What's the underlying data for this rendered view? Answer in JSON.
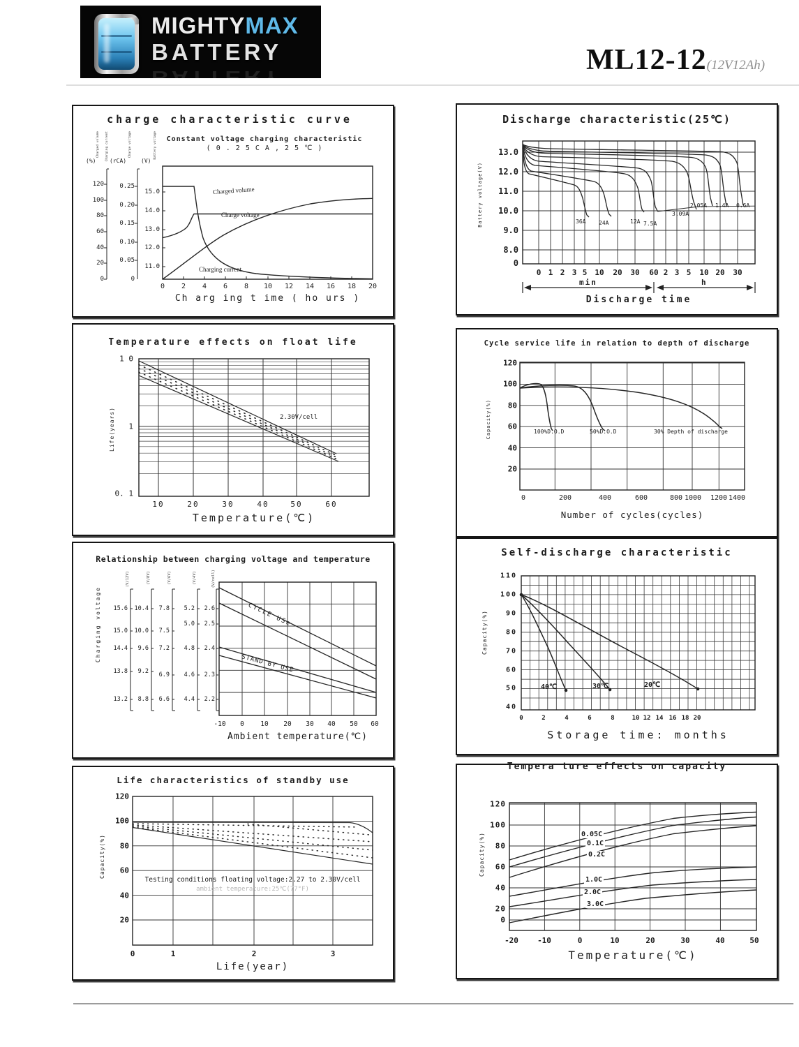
{
  "header": {
    "logo_word1": "MIGHTY",
    "logo_word2": "MAX",
    "logo_word3": "BATTERY",
    "model": "ML12-12",
    "model_suffix": "(12V12Ah)"
  },
  "charts": {
    "charge": {
      "title": "charge characteristic curve",
      "subtitle1": "Constant voltage charging characteristic",
      "subtitle2": "( 0 . 2 5 C A , 2 5 ℃ )",
      "axis_units": [
        "(%)",
        "(rCA)",
        "(V)"
      ],
      "pct_ticks": [
        "120",
        "100",
        "80",
        "60",
        "40",
        "20",
        "0"
      ],
      "rca_ticks": [
        "0.25",
        "0.20",
        "0.15",
        "0.10",
        "0.05",
        "0"
      ],
      "v_ticks": [
        "15.0",
        "14.0",
        "13.0",
        "12.0",
        "11.0"
      ],
      "x_ticks": [
        "0",
        "2",
        "4",
        "6",
        "8",
        "10",
        "12",
        "14",
        "16",
        "18",
        "20"
      ],
      "xlabel": "Ch arg ing t ime ( ho urs )",
      "label_volume": "Charged volume",
      "label_voltage": "Charge voltage",
      "label_current": "Charging current",
      "micro_labels": [
        "Charged volume",
        "Charging current",
        "Charge voltage",
        "Battery voltage"
      ]
    },
    "discharge": {
      "title": "Discharge characteristic(25℃)",
      "ylabel": "Battery voltage(V)",
      "y_ticks": [
        "13.0",
        "12.0",
        "11.0",
        "10.0",
        "9.0",
        "8.0",
        "0"
      ],
      "x_ticks_min": [
        "0",
        "1",
        "2",
        "3",
        "5",
        "10",
        "20",
        "30",
        "60"
      ],
      "x_ticks_h": [
        "2",
        "3",
        "5",
        "10",
        "20",
        "30"
      ],
      "section_min": "min",
      "section_h": "h",
      "xlabel": "Discharge time",
      "curve_labels": [
        "36A",
        "24A",
        "12A",
        "7.5A",
        "3.09A",
        "2.05A",
        "1.4A",
        "0.6A"
      ]
    },
    "float_life": {
      "title": "Temperature effects on float life",
      "ylabel": "Life(years)",
      "y_ticks": [
        "1 0",
        "1",
        "0. 1"
      ],
      "x_ticks": [
        "10",
        "20",
        "30",
        "40",
        "50",
        "60"
      ],
      "xlabel": "Temperature(℃)",
      "annotation": "2.30V/cell"
    },
    "cycle_life": {
      "title": "Cycle service life in relation to depth of discharge",
      "ylabel": "Capacity(%)",
      "y_ticks": [
        "120",
        "100",
        "80",
        "60",
        "40",
        "20"
      ],
      "x_ticks": [
        "0",
        "200",
        "400",
        "600",
        "800",
        "1000",
        "1200",
        "1400"
      ],
      "xlabel": "Number of cycles(cycles)",
      "curve_labels": [
        "100%D.O.D",
        "50%D.O.D",
        "30% Depth of discharge"
      ]
    },
    "charge_voltage_temp": {
      "title": "Relationship between charging voltage and temperature",
      "ylabel": "Charging voltage",
      "scale_units": [
        "(V/12V)",
        "(V/8V)",
        "(V/6V)",
        "(V/4V)",
        "(V/cell)"
      ],
      "scale_12v": [
        "15.6",
        "15.0",
        "14.4",
        "13.8",
        "13.2"
      ],
      "scale_8v": [
        "10.4",
        "10.0",
        "9.6",
        "9.2",
        "8.8"
      ],
      "scale_6v": [
        "7.8",
        "7.5",
        "7.2",
        "6.9",
        "6.6"
      ],
      "scale_4v": [
        "5.2",
        "5.0",
        "4.8",
        "4.6",
        "4.4"
      ],
      "scale_2v": [
        "2.6",
        "2.5",
        "2.4",
        "2.3",
        "2.2"
      ],
      "x_ticks": [
        "-10",
        "0",
        "10",
        "20",
        "30",
        "40",
        "50",
        "60"
      ],
      "xlabel": "Ambient temperature(℃)",
      "band_label_cycle": "CYCLE USe",
      "band_label_standby": "STAND BY USE"
    },
    "self_discharge": {
      "title": "Self-discharge characteristic",
      "ylabel": "Capacity(%)",
      "y_ticks": [
        "110",
        "100",
        "90",
        "80",
        "70",
        "60",
        "50",
        "40"
      ],
      "x_ticks": [
        "0",
        "2",
        "4",
        "6",
        "8",
        "10",
        "12",
        "14",
        "16",
        "18",
        "20"
      ],
      "xlabel": "Storage time: months",
      "curve_labels": [
        "40℃",
        "30℃",
        "20℃"
      ]
    },
    "standby_life": {
      "title": "Life characteristics of standby use",
      "ylabel": "Capacity(%)",
      "y_ticks": [
        "120",
        "100",
        "80",
        "60",
        "40",
        "20"
      ],
      "x_ticks": [
        "0",
        "1",
        "2",
        "3"
      ],
      "xlabel": "Life(year)",
      "note1": "Testing conditions floating voltage:2.27 to 2.30V/cell",
      "note2": "ambient temperature:25℃(77°F)"
    },
    "temp_capacity": {
      "title": "Tempera ture effects on capacity",
      "ylabel": "Capacity(%)",
      "y_ticks": [
        "120",
        "100",
        "80",
        "60",
        "40",
        "20",
        "0"
      ],
      "x_ticks": [
        "-20",
        "-10",
        "0",
        "10",
        "20",
        "30",
        "40",
        "50"
      ],
      "xlabel": "Temperature(℃)",
      "curve_labels": [
        "0.05C",
        "0.1C",
        "0.2C",
        "1.0C",
        "2.0C",
        "3.0C"
      ]
    }
  },
  "chart_data": [
    {
      "id": "charge_characteristic",
      "type": "line",
      "title": "charge characteristic curve",
      "subtitle": "Constant voltage charging characteristic (0.25CA, 25℃)",
      "xlabel": "Charging time (hours)",
      "x_range": [
        0,
        20
      ],
      "axes": [
        {
          "label": "Charged volume",
          "unit": "%",
          "range": [
            0,
            120
          ]
        },
        {
          "label": "Charging current",
          "unit": "rCA",
          "range": [
            0,
            0.25
          ]
        },
        {
          "label": "Charge voltage",
          "unit": "V",
          "range": [
            11,
            15
          ]
        }
      ],
      "series": [
        {
          "name": "Charged volume",
          "unit": "%",
          "x": [
            0,
            2,
            4,
            6,
            8,
            10,
            12,
            14,
            16,
            18,
            20
          ],
          "y": [
            0,
            22,
            46,
            63,
            75,
            84,
            90,
            95,
            98,
            100,
            102
          ]
        },
        {
          "name": "Charge voltage",
          "unit": "V",
          "x": [
            0,
            1,
            2,
            2.5,
            3,
            4,
            20
          ],
          "y": [
            12.55,
            12.7,
            13.0,
            13.3,
            13.85,
            13.85,
            13.85
          ]
        },
        {
          "name": "Charging current",
          "unit": "CA",
          "x": [
            0,
            3,
            4,
            5,
            6,
            8,
            10,
            14,
            20
          ],
          "y": [
            0.25,
            0.25,
            0.13,
            0.085,
            0.062,
            0.04,
            0.028,
            0.015,
            0.009
          ]
        }
      ]
    },
    {
      "id": "discharge_characteristic",
      "type": "line",
      "title": "Discharge characteristic(25℃)",
      "xlabel": "Discharge time (min then h)",
      "ylabel": "Battery voltage(V)",
      "ylim": [
        8,
        13.5
      ],
      "x_ticks": [
        "0min",
        "1",
        "2",
        "3",
        "5",
        "10",
        "20",
        "30",
        "60min",
        "2h",
        "3h",
        "5h",
        "10h",
        "20h",
        "30h"
      ],
      "series": [
        {
          "name": "36A",
          "points_min_v": [
            [
              0,
              12.0
            ],
            [
              3,
              11.4
            ],
            [
              5,
              9.7
            ]
          ]
        },
        {
          "name": "24A",
          "points_min_v": [
            [
              0,
              12.1
            ],
            [
              8,
              11.5
            ],
            [
              13,
              9.8
            ]
          ]
        },
        {
          "name": "12A",
          "points_min_v": [
            [
              0,
              12.3
            ],
            [
              20,
              11.6
            ],
            [
              33,
              9.9
            ]
          ]
        },
        {
          "name": "7.5A",
          "points_min_v": [
            [
              0,
              12.4
            ],
            [
              40,
              11.7
            ],
            [
              60,
              10.0
            ]
          ]
        },
        {
          "name": "3.09A",
          "points_h_v": [
            [
              0,
              12.7
            ],
            [
              2,
              11.7
            ],
            [
              3.3,
              10.2
            ]
          ]
        },
        {
          "name": "2.05A",
          "points_h_v": [
            [
              0,
              12.8
            ],
            [
              3,
              11.8
            ],
            [
              5,
              10.5
            ]
          ]
        },
        {
          "name": "1.4A",
          "points_h_v": [
            [
              0,
              12.9
            ],
            [
              5,
              11.9
            ],
            [
              8,
              10.55
            ]
          ]
        },
        {
          "name": "0.6A",
          "points_h_v": [
            [
              0,
              13.0
            ],
            [
              12,
              11.9
            ],
            [
              20,
              10.6
            ]
          ]
        }
      ]
    },
    {
      "id": "temperature_effects_float_life",
      "type": "area",
      "title": "Temperature effects on float life",
      "xlabel": "Temperature(℃)",
      "ylabel": "Life(years)",
      "yscale": "log",
      "ylim": [
        0.1,
        10
      ],
      "xlim": [
        5,
        65
      ],
      "annotation": "2.30V/cell",
      "band": {
        "x": [
          5,
          60
        ],
        "upper_years": [
          9.5,
          0.45
        ],
        "lower_years": [
          5.5,
          0.3
        ]
      }
    },
    {
      "id": "cycle_service_life",
      "type": "line",
      "title": "Cycle service life in relation to depth of discharge",
      "xlabel": "Number of cycles(cycles)",
      "ylabel": "Capacity(%)",
      "ylim": [
        0,
        120
      ],
      "xlim": [
        0,
        1400
      ],
      "series": [
        {
          "name": "100%D.O.D",
          "x": [
            0,
            50,
            100,
            150
          ],
          "y": [
            97,
            100,
            85,
            58
          ]
        },
        {
          "name": "50%D.O.D",
          "x": [
            0,
            200,
            330,
            400
          ],
          "y": [
            97,
            96,
            75,
            58
          ]
        },
        {
          "name": "30% Depth of discharge",
          "x": [
            0,
            400,
            800,
            1000,
            1200
          ],
          "y": [
            97,
            94,
            85,
            75,
            60
          ]
        }
      ]
    },
    {
      "id": "charging_voltage_vs_temperature",
      "type": "area",
      "title": "Relationship between charging voltage and temperature",
      "xlabel": "Ambient temperature(℃)",
      "ylabel": "Charging voltage",
      "xlim": [
        -10,
        60
      ],
      "scales": {
        "V/12V": [
          15.6,
          15.0,
          14.4,
          13.8,
          13.2
        ],
        "V/8V": [
          10.4,
          10.0,
          9.6,
          9.2,
          8.8
        ],
        "V/6V": [
          7.8,
          7.5,
          7.2,
          6.9,
          6.6
        ],
        "V/4V": [
          5.2,
          5.0,
          4.8,
          4.6,
          4.4
        ],
        "V/cell": [
          2.6,
          2.5,
          2.4,
          2.3,
          2.2
        ]
      },
      "bands": [
        {
          "name": "CYCLE USE",
          "x": [
            -10,
            60
          ],
          "upper_v_per_cell": [
            2.62,
            2.38
          ],
          "lower_v_per_cell": [
            2.55,
            2.33
          ]
        },
        {
          "name": "STAND BY USE",
          "x": [
            -10,
            60
          ],
          "upper_v_per_cell": [
            2.42,
            2.25
          ],
          "lower_v_per_cell": [
            2.38,
            2.2
          ]
        }
      ]
    },
    {
      "id": "self_discharge",
      "type": "line",
      "title": "Self-discharge characteristic",
      "xlabel": "Storage time: months",
      "ylabel": "Capacity(%)",
      "ylim": [
        40,
        110
      ],
      "series": [
        {
          "name": "40℃",
          "x": [
            0,
            2,
            5
          ],
          "y": [
            100,
            78,
            49
          ]
        },
        {
          "name": "30℃",
          "x": [
            0,
            5,
            10
          ],
          "y": [
            100,
            76,
            49
          ]
        },
        {
          "name": "20℃",
          "x": [
            0,
            10,
            20
          ],
          "y": [
            100,
            75,
            49
          ]
        }
      ]
    },
    {
      "id": "life_characteristics_standby",
      "type": "area",
      "title": "Life characteristics of standby use",
      "xlabel": "Life(year)",
      "ylabel": "Capacity(%)",
      "ylim": [
        0,
        120
      ],
      "xlim": [
        0,
        3.5
      ],
      "notes": [
        "Testing conditions floating voltage:2.27 to 2.30V/cell",
        "ambient temperature:25℃(77°F)"
      ],
      "band": {
        "x": [
          0,
          3,
          3.5
        ],
        "upper_pct": [
          98,
          97,
          92
        ],
        "lower_pct": [
          95,
          72,
          67
        ]
      }
    },
    {
      "id": "temperature_effects_capacity",
      "type": "line",
      "title": "Temperature effects on capacity",
      "xlabel": "Temperature(℃)",
      "ylabel": "Capacity(%)",
      "ylim": [
        0,
        120
      ],
      "categories": [
        -20,
        -10,
        0,
        10,
        20,
        30,
        40,
        50
      ],
      "series": [
        {
          "name": "0.05C",
          "values": [
            67,
            75,
            82,
            89,
            95,
            101,
            106,
            111
          ]
        },
        {
          "name": "0.1C",
          "values": [
            58,
            66,
            73,
            80,
            87,
            93,
            98,
            103
          ]
        },
        {
          "name": "0.2C",
          "values": [
            50,
            57,
            64,
            72,
            79,
            85,
            90,
            95
          ]
        },
        {
          "name": "1.0C",
          "values": [
            27,
            34,
            41,
            47,
            52,
            56,
            59,
            61
          ]
        },
        {
          "name": "2.0C",
          "values": [
            12,
            19,
            26,
            32,
            38,
            42,
            45,
            48
          ]
        },
        {
          "name": "3.0C",
          "values": [
            -6,
            2,
            10,
            18,
            25,
            31,
            35,
            38
          ]
        }
      ]
    }
  ]
}
